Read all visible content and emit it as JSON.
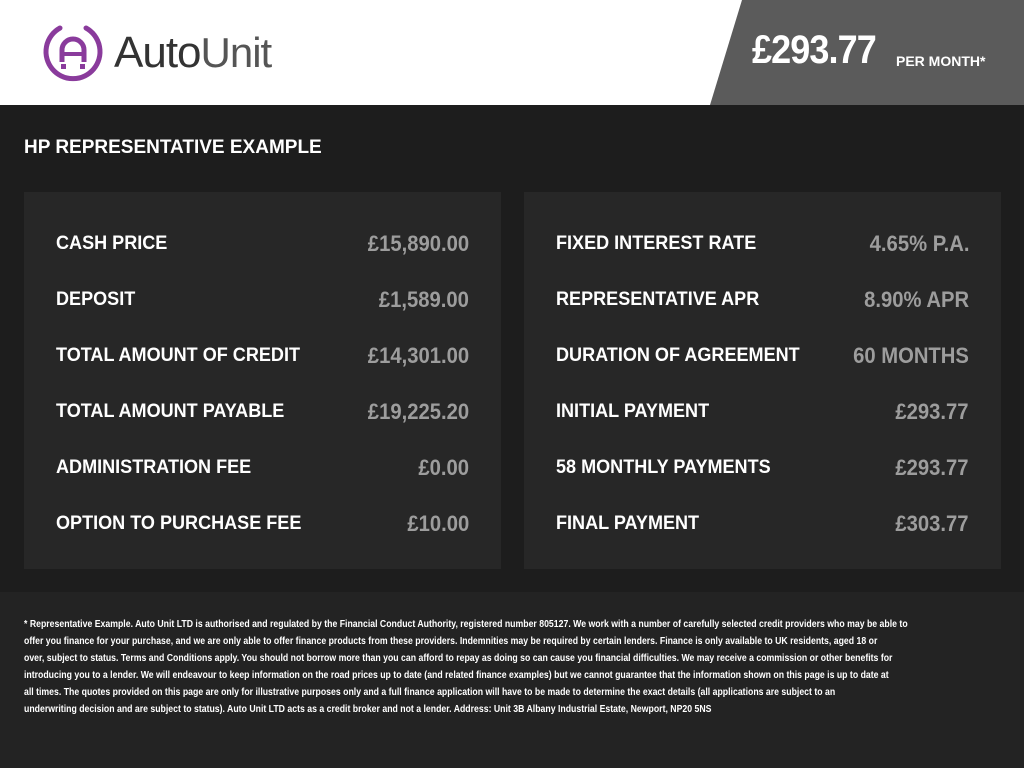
{
  "header": {
    "logo_text": "Auto Unit",
    "price": "£293.77",
    "per_month": "PER MONTH*"
  },
  "title": "HP REPRESENTATIVE EXAMPLE",
  "left": [
    {
      "label": "CASH PRICE",
      "value": "£15,890.00"
    },
    {
      "label": "DEPOSIT",
      "value": "£1,589.00"
    },
    {
      "label": "TOTAL AMOUNT OF CREDIT",
      "value": "£14,301.00"
    },
    {
      "label": "TOTAL AMOUNT PAYABLE",
      "value": "£19,225.20"
    },
    {
      "label": "ADMINISTRATION FEE",
      "value": "£0.00"
    },
    {
      "label": "OPTION TO PURCHASE FEE",
      "value": "£10.00"
    }
  ],
  "right": [
    {
      "label": "FIXED INTEREST RATE",
      "value": "4.65% P.A."
    },
    {
      "label": "REPRESENTATIVE APR",
      "value": "8.90% APR"
    },
    {
      "label": "DURATION OF AGREEMENT",
      "value": "60 MONTHS"
    },
    {
      "label": "INITIAL PAYMENT",
      "value": "£293.77"
    },
    {
      "label": "58 MONTHLY PAYMENTS",
      "value": "£293.77"
    },
    {
      "label": "FINAL PAYMENT",
      "value": "£303.77"
    }
  ],
  "disclaimer": [
    "* Representative Example. Auto Unit LTD is authorised and regulated by the Financial Conduct Authority, registered number 805127. We work with a number of carefully selected credit providers who may be able to",
    "offer you finance for your purchase, and we are only able to offer finance products from these providers. Indemnities may be required by certain lenders. Finance is only available to UK residents, aged 18 or",
    "over, subject to status. Terms and Conditions apply. You should not borrow more than you can afford to repay as doing so can cause you financial difficulties. We may receive a commission or other benefits for",
    "introducing you to a lender. We will endeavour to keep information on the road prices up to date (and related finance examples) but we cannot guarantee that the information shown on this page is up to date at",
    "all times. The quotes provided on this page are only for illustrative purposes only and a full finance application will have to be made to determine the exact details (all applications are subject to an",
    "underwriting decision and are subject to status). Auto Unit LTD acts as a credit broker and not a lender. Address: Unit 3B Albany Industrial Estate, Newport, NP20 5NS"
  ],
  "colors": {
    "brand": "#8a3b9c",
    "price_panel": "#5b5b5b",
    "background": "#1d1d1d",
    "panel": "#272727",
    "value": "#9d9d9d"
  }
}
